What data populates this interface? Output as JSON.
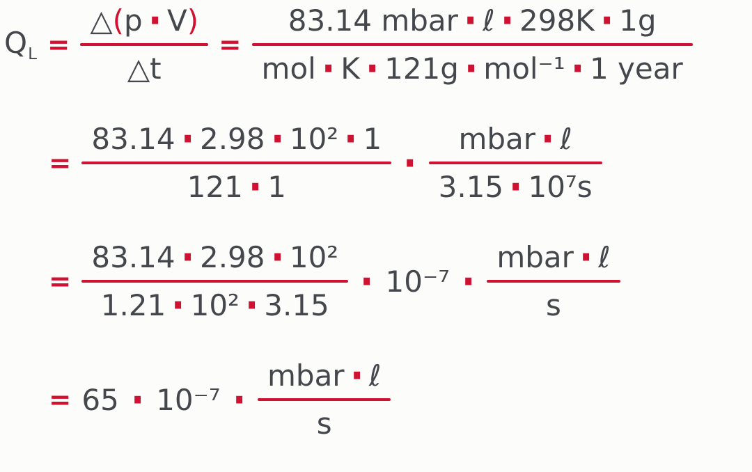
{
  "colors": {
    "text": "#44474c",
    "accent": "#d01232",
    "background": "#fcfcfa"
  },
  "symbols": {
    "equals": "=",
    "cdot": "·",
    "lparen": "(",
    "rparen": ")"
  },
  "lhs": {
    "base": "Q",
    "subscript": "L"
  },
  "row1": {
    "symbolic": {
      "delta": "△",
      "p": "p",
      "v": "V",
      "den": "△t"
    },
    "values": {
      "num_terms": [
        "83.14 mbar",
        "ℓ",
        "298K",
        "1g"
      ],
      "den_terms": [
        "mol",
        "K",
        "121g",
        "mol⁻¹",
        "1 year"
      ]
    }
  },
  "row2": {
    "left": {
      "num_terms": [
        "83.14",
        "2.98",
        "10²",
        "1"
      ],
      "den_terms": [
        "121",
        "1"
      ]
    },
    "right": {
      "num_terms": [
        "mbar",
        "ℓ"
      ],
      "den_terms": [
        "3.15",
        "10⁷s"
      ]
    }
  },
  "row3": {
    "left": {
      "num_terms": [
        "83.14",
        "2.98",
        "10²"
      ],
      "den_terms": [
        "1.21",
        "10²",
        "3.15"
      ]
    },
    "scalar": "10⁻⁷",
    "right": {
      "num_terms": [
        "mbar",
        "ℓ"
      ],
      "den_terms": [
        "s"
      ]
    }
  },
  "row4": {
    "coefficient": "65",
    "scalar": "10⁻⁷",
    "frac": {
      "num_terms": [
        "mbar",
        "ℓ"
      ],
      "den_terms": [
        "s"
      ]
    }
  }
}
